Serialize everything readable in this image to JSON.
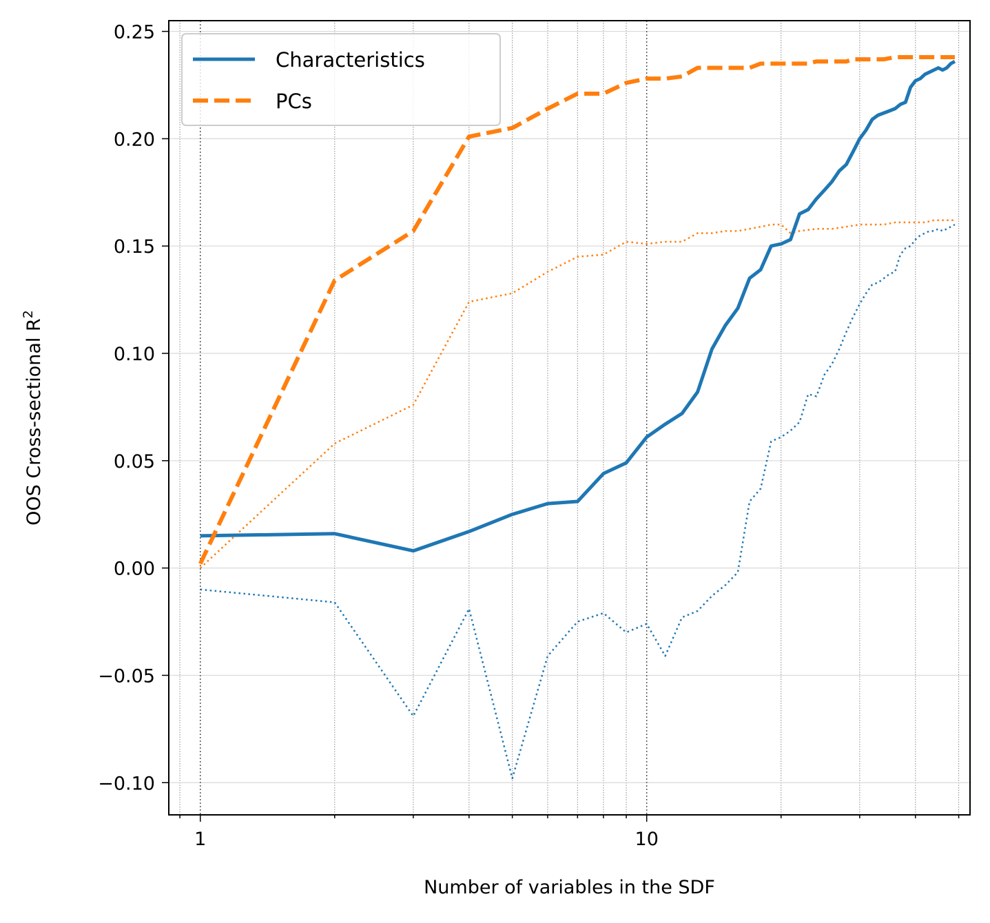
{
  "chart_data": {
    "type": "line",
    "xlabel": "Number of variables in the SDF",
    "ylabel": "OOS Cross-sectional R",
    "ylabel_superscript": "2",
    "xscale": "log",
    "xlim": [
      0.85,
      53
    ],
    "ylim": [
      -0.115,
      0.255
    ],
    "xticks": [
      {
        "value": 1,
        "label": "1"
      },
      {
        "value": 10,
        "label": "10"
      }
    ],
    "yticks": [
      {
        "value": 0.25,
        "label": "0.25"
      },
      {
        "value": 0.2,
        "label": "0.20"
      },
      {
        "value": 0.15,
        "label": "0.15"
      },
      {
        "value": 0.1,
        "label": "0.10"
      },
      {
        "value": 0.05,
        "label": "0.05"
      },
      {
        "value": 0.0,
        "label": "0.00"
      },
      {
        "value": -0.05,
        "label": "−0.05"
      },
      {
        "value": -0.1,
        "label": "−0.10"
      }
    ],
    "grid": true,
    "legend_position": "top-left",
    "legend": [
      {
        "label": "Characteristics",
        "color": "#1f77b4",
        "style": "solid"
      },
      {
        "label": "PCs",
        "color": "#ff7f0e",
        "style": "dashed"
      }
    ],
    "series": [
      {
        "name": "Characteristics",
        "color": "#1f77b4",
        "style": "solid",
        "points": [
          [
            1,
            0.015
          ],
          [
            2,
            0.016
          ],
          [
            3,
            0.008
          ],
          [
            4,
            0.017
          ],
          [
            5,
            0.025
          ],
          [
            6,
            0.03
          ],
          [
            7,
            0.031
          ],
          [
            8,
            0.044
          ],
          [
            9,
            0.049
          ],
          [
            10,
            0.061
          ],
          [
            11,
            0.067
          ],
          [
            12,
            0.072
          ],
          [
            13,
            0.082
          ],
          [
            14,
            0.102
          ],
          [
            15,
            0.113
          ],
          [
            16,
            0.121
          ],
          [
            17,
            0.135
          ],
          [
            18,
            0.139
          ],
          [
            19,
            0.15
          ],
          [
            20,
            0.151
          ],
          [
            21,
            0.153
          ],
          [
            22,
            0.165
          ],
          [
            23,
            0.167
          ],
          [
            24,
            0.172
          ],
          [
            25,
            0.176
          ],
          [
            26,
            0.18
          ],
          [
            27,
            0.185
          ],
          [
            28,
            0.188
          ],
          [
            29,
            0.194
          ],
          [
            30,
            0.2
          ],
          [
            31,
            0.204
          ],
          [
            32,
            0.209
          ],
          [
            33,
            0.211
          ],
          [
            34,
            0.212
          ],
          [
            35,
            0.213
          ],
          [
            36,
            0.214
          ],
          [
            37,
            0.216
          ],
          [
            38,
            0.217
          ],
          [
            39,
            0.224
          ],
          [
            40,
            0.227
          ],
          [
            41,
            0.228
          ],
          [
            42,
            0.23
          ],
          [
            43,
            0.231
          ],
          [
            44,
            0.232
          ],
          [
            45,
            0.233
          ],
          [
            46,
            0.232
          ],
          [
            47,
            0.233
          ],
          [
            48,
            0.235
          ],
          [
            49,
            0.236
          ]
        ]
      },
      {
        "name": "PCs",
        "color": "#ff7f0e",
        "style": "dashed",
        "points": [
          [
            1,
            0.002
          ],
          [
            2,
            0.134
          ],
          [
            3,
            0.157
          ],
          [
            4,
            0.201
          ],
          [
            5,
            0.205
          ],
          [
            6,
            0.214
          ],
          [
            7,
            0.221
          ],
          [
            8,
            0.221
          ],
          [
            9,
            0.226
          ],
          [
            10,
            0.228
          ],
          [
            11,
            0.228
          ],
          [
            12,
            0.229
          ],
          [
            13,
            0.233
          ],
          [
            14,
            0.233
          ],
          [
            15,
            0.233
          ],
          [
            16,
            0.233
          ],
          [
            17,
            0.233
          ],
          [
            18,
            0.235
          ],
          [
            19,
            0.235
          ],
          [
            20,
            0.235
          ],
          [
            21,
            0.235
          ],
          [
            22,
            0.235
          ],
          [
            23,
            0.235
          ],
          [
            24,
            0.236
          ],
          [
            25,
            0.236
          ],
          [
            26,
            0.236
          ],
          [
            27,
            0.236
          ],
          [
            28,
            0.236
          ],
          [
            29,
            0.237
          ],
          [
            30,
            0.237
          ],
          [
            32,
            0.237
          ],
          [
            34,
            0.237
          ],
          [
            36,
            0.238
          ],
          [
            38,
            0.238
          ],
          [
            40,
            0.238
          ],
          [
            42,
            0.238
          ],
          [
            44,
            0.238
          ],
          [
            46,
            0.238
          ],
          [
            48,
            0.238
          ],
          [
            49,
            0.238
          ]
        ]
      },
      {
        "name": "",
        "color": "#1f77b4",
        "style": "dotted",
        "points": [
          [
            1,
            -0.01
          ],
          [
            2,
            -0.016
          ],
          [
            3,
            -0.069
          ],
          [
            4,
            -0.019
          ],
          [
            5,
            -0.098
          ],
          [
            6,
            -0.041
          ],
          [
            7,
            -0.025
          ],
          [
            8,
            -0.021
          ],
          [
            9,
            -0.03
          ],
          [
            10,
            -0.026
          ],
          [
            11,
            -0.041
          ],
          [
            12,
            -0.023
          ],
          [
            13,
            -0.02
          ],
          [
            14,
            -0.013
          ],
          [
            15,
            -0.008
          ],
          [
            16,
            -0.002
          ],
          [
            17,
            0.031
          ],
          [
            18,
            0.037
          ],
          [
            19,
            0.059
          ],
          [
            20,
            0.061
          ],
          [
            21,
            0.064
          ],
          [
            22,
            0.068
          ],
          [
            23,
            0.081
          ],
          [
            24,
            0.08
          ],
          [
            25,
            0.09
          ],
          [
            26,
            0.095
          ],
          [
            27,
            0.102
          ],
          [
            28,
            0.11
          ],
          [
            29,
            0.117
          ],
          [
            30,
            0.123
          ],
          [
            31,
            0.128
          ],
          [
            32,
            0.132
          ],
          [
            33,
            0.133
          ],
          [
            34,
            0.135
          ],
          [
            35,
            0.137
          ],
          [
            36,
            0.138
          ],
          [
            37,
            0.146
          ],
          [
            38,
            0.149
          ],
          [
            39,
            0.15
          ],
          [
            40,
            0.153
          ],
          [
            41,
            0.155
          ],
          [
            42,
            0.156
          ],
          [
            43,
            0.157
          ],
          [
            44,
            0.157
          ],
          [
            45,
            0.158
          ],
          [
            46,
            0.157
          ],
          [
            47,
            0.158
          ],
          [
            48,
            0.159
          ],
          [
            49,
            0.16
          ]
        ]
      },
      {
        "name": "",
        "color": "#ff7f0e",
        "style": "dotted",
        "points": [
          [
            1,
            0.0
          ],
          [
            2,
            0.058
          ],
          [
            3,
            0.076
          ],
          [
            4,
            0.124
          ],
          [
            5,
            0.128
          ],
          [
            6,
            0.138
          ],
          [
            7,
            0.145
          ],
          [
            8,
            0.146
          ],
          [
            9,
            0.152
          ],
          [
            10,
            0.151
          ],
          [
            11,
            0.152
          ],
          [
            12,
            0.152
          ],
          [
            13,
            0.156
          ],
          [
            14,
            0.156
          ],
          [
            15,
            0.157
          ],
          [
            16,
            0.157
          ],
          [
            17,
            0.158
          ],
          [
            18,
            0.159
          ],
          [
            19,
            0.16
          ],
          [
            20,
            0.16
          ],
          [
            21,
            0.156
          ],
          [
            22,
            0.157
          ],
          [
            24,
            0.158
          ],
          [
            26,
            0.158
          ],
          [
            28,
            0.159
          ],
          [
            30,
            0.16
          ],
          [
            32,
            0.16
          ],
          [
            34,
            0.16
          ],
          [
            36,
            0.161
          ],
          [
            38,
            0.161
          ],
          [
            40,
            0.161
          ],
          [
            42,
            0.161
          ],
          [
            44,
            0.162
          ],
          [
            46,
            0.162
          ],
          [
            48,
            0.162
          ],
          [
            49,
            0.162
          ]
        ]
      }
    ]
  }
}
